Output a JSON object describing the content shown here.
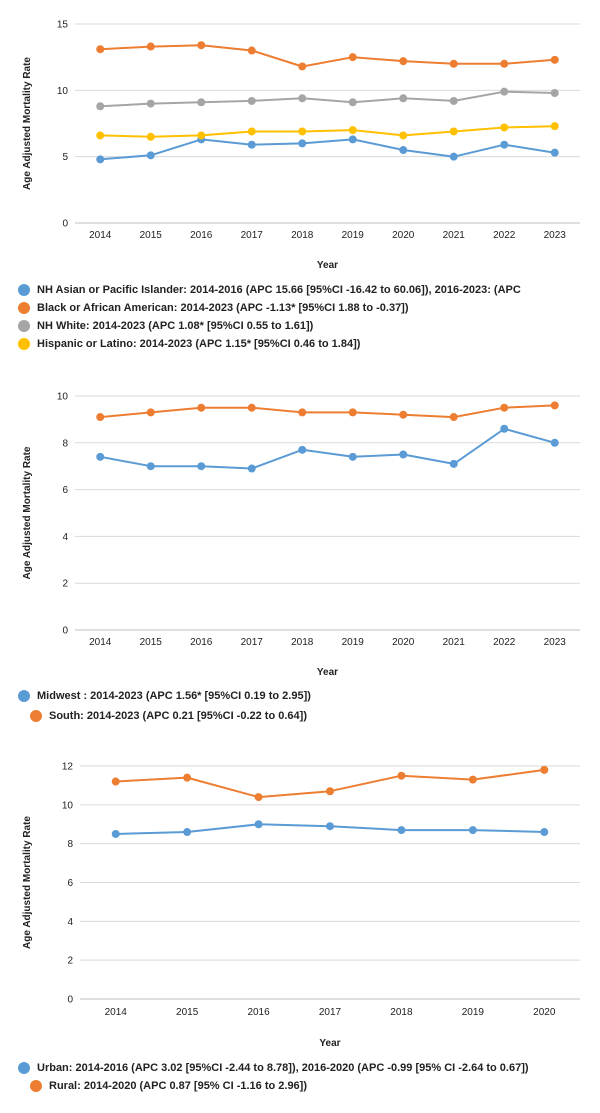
{
  "chart_data": [
    {
      "type": "line",
      "title": "",
      "xlabel": "Year",
      "ylabel": "Age Adjusted Mortality Rate",
      "ylim": [
        0,
        15
      ],
      "yticks": [
        0,
        5,
        10,
        15
      ],
      "grid": true,
      "legend_position": "bottom",
      "x": [
        2014,
        2015,
        2016,
        2017,
        2018,
        2019,
        2020,
        2021,
        2022,
        2023
      ],
      "series": [
        {
          "name": "NH Asian or Pacific Islander: 2014-2016 (APC 15.66 [95%CI -16.42 to 60.06]), 2016-2023: (APC",
          "color": "#5b9bd5",
          "values": [
            4.8,
            5.1,
            6.3,
            5.9,
            6.0,
            6.3,
            5.5,
            5.0,
            5.9,
            5.3
          ]
        },
        {
          "name": "Black or African American: 2014-2023 (APC -1.13* [95%CI 1.88 to -0.37])",
          "color": "#ed7d31",
          "values": [
            13.1,
            13.3,
            13.4,
            13.0,
            11.8,
            12.5,
            12.2,
            12.0,
            12.0,
            12.3
          ]
        },
        {
          "name": "NH White: 2014-2023 (APC 1.08* [95%CI 0.55 to 1.61])",
          "color": "#a5a5a5",
          "values": [
            8.8,
            9.0,
            9.1,
            9.2,
            9.4,
            9.1,
            9.4,
            9.2,
            9.9,
            9.8
          ]
        },
        {
          "name": "Hispanic or Latino: 2014-2023 (APC 1.15* [95%CI 0.46 to 1.84])",
          "color": "#ffc000",
          "values": [
            6.6,
            6.5,
            6.6,
            6.9,
            6.9,
            7.0,
            6.6,
            6.9,
            7.2,
            7.3
          ]
        }
      ]
    },
    {
      "type": "line",
      "title": "",
      "xlabel": "Year",
      "ylabel": "Age Adjusted Mortality Rate",
      "ylim": [
        0,
        10
      ],
      "yticks": [
        0,
        2,
        4,
        6,
        8,
        10
      ],
      "grid": true,
      "legend_position": "bottom",
      "x": [
        2014,
        2015,
        2016,
        2017,
        2018,
        2019,
        2020,
        2021,
        2022,
        2023
      ],
      "series": [
        {
          "name": "Midwest : 2014-2023 (APC 1.56* [95%CI 0.19 to 2.95])",
          "color": "#5b9bd5",
          "values": [
            7.4,
            7.0,
            7.0,
            6.9,
            7.7,
            7.4,
            7.5,
            7.1,
            8.6,
            8.0
          ]
        },
        {
          "name": "South: 2014-2023 (APC 0.21 [95%CI -0.22 to 0.64])",
          "color": "#ed7d31",
          "values": [
            9.1,
            9.3,
            9.5,
            9.5,
            9.3,
            9.3,
            9.2,
            9.1,
            9.5,
            9.6
          ]
        }
      ]
    },
    {
      "type": "line",
      "title": "",
      "xlabel": "Year",
      "ylabel": "Age Adjusted Mortality Rate",
      "ylim": [
        0,
        12
      ],
      "yticks": [
        0,
        2,
        4,
        6,
        8,
        10,
        12
      ],
      "grid": true,
      "legend_position": "bottom",
      "x": [
        2014,
        2015,
        2016,
        2017,
        2018,
        2019,
        2020
      ],
      "series": [
        {
          "name": "Urban: 2014-2016 (APC 3.02 [95%CI -2.44 to 8.78]), 2016-2020 (APC -0.99 [95% CI -2.64 to 0.67])",
          "color": "#5b9bd5",
          "values": [
            8.5,
            8.6,
            9.0,
            8.9,
            8.7,
            8.7,
            8.6
          ]
        },
        {
          "name": "Rural: 2014-2020 (APC 0.87 [95% CI -1.16 to 2.96])",
          "color": "#ed7d31",
          "values": [
            11.2,
            11.4,
            10.4,
            10.7,
            11.5,
            11.3,
            11.8
          ]
        }
      ]
    }
  ]
}
